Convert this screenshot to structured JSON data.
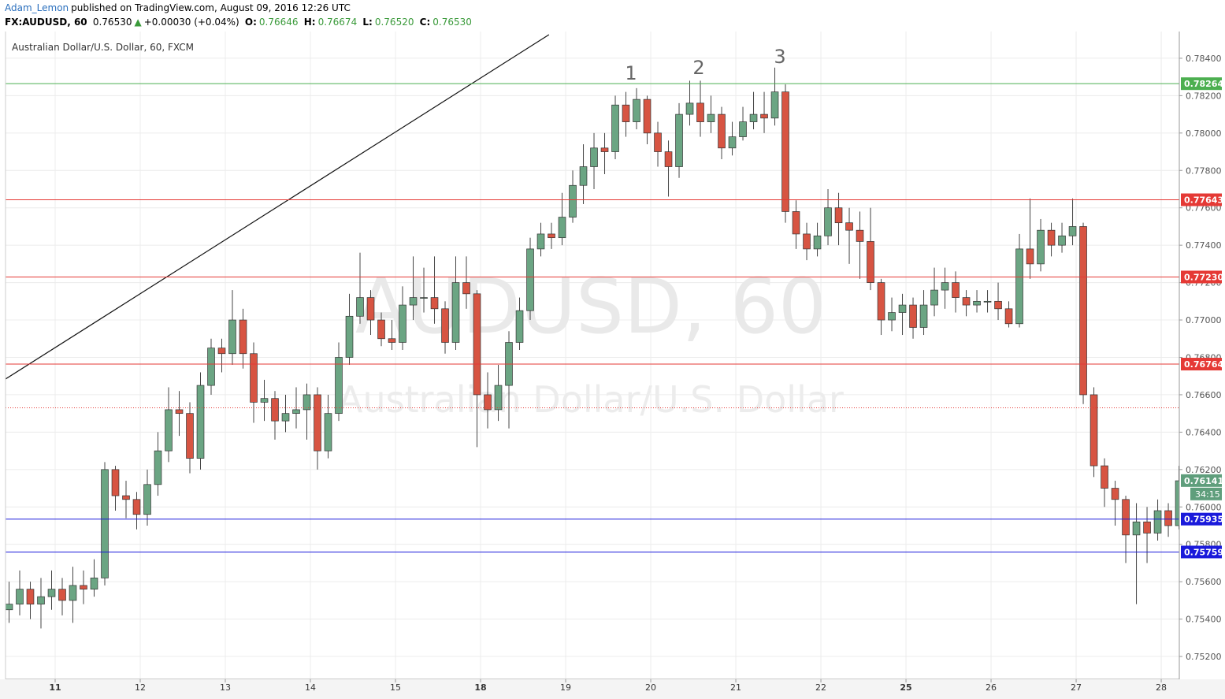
{
  "header": {
    "author": "Adam_Lemon",
    "published": "published on TradingView.com, August 09, 2016 12:26 UTC",
    "symbol": "FX:AUDUSD, 60",
    "last": "0.76530",
    "arrow": "▲",
    "change": "+0.00030 (+0.04%)",
    "o_label": "O:",
    "open": "0.76646",
    "h_label": "H:",
    "high": "0.76674",
    "l_label": "L:",
    "low": "0.76520",
    "c_label": "C:",
    "close": "0.76530"
  },
  "chart_data": {
    "type": "candlestick",
    "legend": "Australian Dollar/U.S. Dollar, 60, FXCM",
    "watermark": "AUDUSD, 60",
    "watermark_sub": "Australian Dollar/U.S. Dollar",
    "up_color": "#6ba583",
    "down_color": "#d75442",
    "xlim": [
      -14,
      317.1
    ],
    "ylim": [
      0.75078,
      0.78543
    ],
    "xticks": [
      {
        "value": 0,
        "label": "11"
      },
      {
        "value": 24,
        "label": "12"
      },
      {
        "value": 48,
        "label": "13"
      },
      {
        "value": 72,
        "label": "14"
      },
      {
        "value": 96,
        "label": "15"
      },
      {
        "value": 120,
        "label": "18"
      },
      {
        "value": 144,
        "label": "19"
      },
      {
        "value": 168,
        "label": "20"
      },
      {
        "value": 192,
        "label": "21"
      },
      {
        "value": 216,
        "label": "22"
      },
      {
        "value": 240,
        "label": "25"
      },
      {
        "value": 264,
        "label": "26"
      },
      {
        "value": 288,
        "label": "27"
      },
      {
        "value": 312,
        "label": "28"
      }
    ],
    "yticks": [
      {
        "value": 0.752,
        "label": "0.75200"
      },
      {
        "value": 0.754,
        "label": "0.75400"
      },
      {
        "value": 0.756,
        "label": "0.75600"
      },
      {
        "value": 0.758,
        "label": "0.75800"
      },
      {
        "value": 0.76,
        "label": "0.76000"
      },
      {
        "value": 0.762,
        "label": "0.76200"
      },
      {
        "value": 0.764,
        "label": "0.76400"
      },
      {
        "value": 0.766,
        "label": "0.76600"
      },
      {
        "value": 0.768,
        "label": "0.76800"
      },
      {
        "value": 0.77,
        "label": "0.77000"
      },
      {
        "value": 0.772,
        "label": "0.77200"
      },
      {
        "value": 0.774,
        "label": "0.77400"
      },
      {
        "value": 0.776,
        "label": "0.77600"
      },
      {
        "value": 0.778,
        "label": "0.77800"
      },
      {
        "value": 0.78,
        "label": "0.78000"
      },
      {
        "value": 0.782,
        "label": "0.78200"
      },
      {
        "value": 0.784,
        "label": "0.78400"
      }
    ],
    "grid": true,
    "hlines": [
      {
        "value": 0.78264,
        "color": "#4caf50"
      },
      {
        "value": 0.77643,
        "color": "#e53935"
      },
      {
        "value": 0.7723,
        "label": "0.77230",
        "color": "#e53935"
      },
      {
        "value": 0.76764,
        "color": "#e53935"
      },
      {
        "value": 0.75935,
        "color": "#1a1adb"
      },
      {
        "value": 0.75759,
        "color": "#1a1adb"
      }
    ],
    "current_line": {
      "value": 0.7653,
      "color": "#e53935"
    },
    "current_price": {
      "value": 0.76141,
      "countdown": "34:15",
      "color": "#5f9e7c"
    },
    "trendline": {
      "x": [
        -14,
        139.3
      ],
      "y": [
        0.76684,
        0.78526
      ]
    },
    "annotations": [
      "1",
      "2",
      "3"
    ],
    "x": [
      -13,
      -10,
      -7,
      -4,
      -1,
      2,
      5,
      8,
      11,
      14,
      17,
      20,
      23,
      26,
      29,
      32,
      35,
      38,
      41,
      44,
      47,
      50,
      53,
      56,
      59,
      62,
      65,
      68,
      71,
      74,
      77,
      80,
      83,
      86,
      89,
      92,
      95,
      98,
      101,
      104,
      107,
      110,
      113,
      116,
      119,
      122,
      125,
      128,
      131,
      134,
      137,
      140,
      143,
      146,
      149,
      152,
      155,
      158,
      161,
      164,
      167,
      170,
      173,
      176,
      179,
      182,
      185,
      188,
      191,
      194,
      197,
      200,
      203,
      206,
      209,
      212,
      215,
      218,
      221,
      224,
      227,
      230,
      233,
      236,
      239,
      242,
      245,
      248,
      251,
      254,
      257,
      260,
      263,
      266,
      269,
      272,
      275,
      278,
      281,
      284,
      287,
      290,
      293,
      296,
      299,
      302,
      305,
      308,
      311,
      314,
      317
    ],
    "open": [
      0.7545,
      0.7548,
      0.7556,
      0.7548,
      0.7552,
      0.7556,
      0.755,
      0.7558,
      0.7556,
      0.7562,
      0.762,
      0.7606,
      0.7604,
      0.7596,
      0.7612,
      0.763,
      0.7652,
      0.765,
      0.7626,
      0.7665,
      0.7685,
      0.7682,
      0.77,
      0.7682,
      0.7656,
      0.7658,
      0.7646,
      0.765,
      0.7652,
      0.766,
      0.763,
      0.765,
      0.768,
      0.7702,
      0.7712,
      0.77,
      0.769,
      0.7688,
      0.7708,
      0.7712,
      0.7712,
      0.7706,
      0.7688,
      0.772,
      0.7714,
      0.766,
      0.7652,
      0.7665,
      0.7688,
      0.7705,
      0.7738,
      0.7746,
      0.7744,
      0.7755,
      0.7772,
      0.7782,
      0.7792,
      0.779,
      0.7815,
      0.7806,
      0.7818,
      0.78,
      0.779,
      0.7782,
      0.781,
      0.7816,
      0.7806,
      0.781,
      0.7792,
      0.7798,
      0.7806,
      0.781,
      0.7808,
      0.7822,
      0.7758,
      0.7746,
      0.7738,
      0.7745,
      0.776,
      0.7752,
      0.7748,
      0.7742,
      0.772,
      0.77,
      0.7704,
      0.7708,
      0.7696,
      0.7708,
      0.7716,
      0.772,
      0.7712,
      0.7708,
      0.771,
      0.771,
      0.7706,
      0.7698,
      0.7738,
      0.773,
      0.7748,
      0.774,
      0.7745,
      0.775,
      0.766,
      0.7622,
      0.761,
      0.7604,
      0.7585,
      0.7592,
      0.7586,
      0.7598,
      0.759
    ],
    "high": [
      0.756,
      0.7566,
      0.756,
      0.7562,
      0.7566,
      0.7562,
      0.7568,
      0.7566,
      0.7572,
      0.7624,
      0.7622,
      0.7614,
      0.7608,
      0.762,
      0.764,
      0.7664,
      0.7662,
      0.7656,
      0.7672,
      0.769,
      0.769,
      0.7716,
      0.7706,
      0.7688,
      0.7668,
      0.7662,
      0.766,
      0.7664,
      0.7666,
      0.7664,
      0.766,
      0.7688,
      0.7714,
      0.7736,
      0.7716,
      0.7704,
      0.77,
      0.7718,
      0.7734,
      0.7728,
      0.7734,
      0.771,
      0.7734,
      0.7734,
      0.7716,
      0.7672,
      0.7676,
      0.7694,
      0.7712,
      0.7744,
      0.7752,
      0.7752,
      0.7768,
      0.778,
      0.7794,
      0.78,
      0.78,
      0.782,
      0.7822,
      0.7824,
      0.782,
      0.7806,
      0.7796,
      0.7816,
      0.7828,
      0.7828,
      0.782,
      0.7814,
      0.7806,
      0.7814,
      0.7822,
      0.7822,
      0.7835,
      0.7826,
      0.7764,
      0.7752,
      0.7752,
      0.777,
      0.7768,
      0.776,
      0.7758,
      0.776,
      0.7722,
      0.7712,
      0.7714,
      0.7712,
      0.7716,
      0.7728,
      0.7728,
      0.7726,
      0.7716,
      0.7716,
      0.7716,
      0.772,
      0.771,
      0.7746,
      0.7765,
      0.7754,
      0.7752,
      0.7752,
      0.7765,
      0.7752,
      0.7664,
      0.7626,
      0.7614,
      0.7606,
      0.7602,
      0.76,
      0.7604,
      0.7602,
      0.7622
    ],
    "low": [
      0.7538,
      0.7542,
      0.754,
      0.7535,
      0.7545,
      0.7542,
      0.7538,
      0.7548,
      0.7552,
      0.7558,
      0.7598,
      0.7594,
      0.7588,
      0.759,
      0.7606,
      0.7624,
      0.7638,
      0.7618,
      0.762,
      0.766,
      0.7672,
      0.7676,
      0.7674,
      0.7645,
      0.7646,
      0.7636,
      0.764,
      0.7642,
      0.7636,
      0.762,
      0.7626,
      0.7646,
      0.7676,
      0.7698,
      0.7692,
      0.7686,
      0.7684,
      0.7684,
      0.77,
      0.7704,
      0.7698,
      0.7682,
      0.7684,
      0.7706,
      0.7632,
      0.7642,
      0.7646,
      0.7642,
      0.7684,
      0.77,
      0.7734,
      0.7738,
      0.774,
      0.7752,
      0.7762,
      0.777,
      0.7778,
      0.7786,
      0.7798,
      0.7802,
      0.7794,
      0.7782,
      0.7766,
      0.7776,
      0.7804,
      0.7798,
      0.78,
      0.7786,
      0.7788,
      0.7796,
      0.7802,
      0.78,
      0.7804,
      0.7752,
      0.7738,
      0.7732,
      0.7734,
      0.774,
      0.774,
      0.773,
      0.7722,
      0.7716,
      0.7692,
      0.7694,
      0.7692,
      0.769,
      0.7692,
      0.7702,
      0.7706,
      0.7704,
      0.7702,
      0.7704,
      0.7704,
      0.77,
      0.7696,
      0.7696,
      0.7722,
      0.7726,
      0.7734,
      0.7736,
      0.774,
      0.7655,
      0.7616,
      0.76,
      0.759,
      0.757,
      0.7548,
      0.757,
      0.7582,
      0.7584,
      0.7588
    ],
    "close": [
      0.7548,
      0.7556,
      0.7548,
      0.7552,
      0.7556,
      0.755,
      0.7558,
      0.7556,
      0.7562,
      0.762,
      0.7606,
      0.7604,
      0.7596,
      0.7612,
      0.763,
      0.7652,
      0.765,
      0.7626,
      0.7665,
      0.7685,
      0.7682,
      0.77,
      0.7682,
      0.7656,
      0.7658,
      0.7646,
      0.765,
      0.7652,
      0.766,
      0.763,
      0.765,
      0.768,
      0.7702,
      0.7712,
      0.77,
      0.769,
      0.7688,
      0.7708,
      0.7712,
      0.7712,
      0.7706,
      0.7688,
      0.772,
      0.7714,
      0.766,
      0.7652,
      0.7665,
      0.7688,
      0.7705,
      0.7738,
      0.7746,
      0.7744,
      0.7755,
      0.7772,
      0.7782,
      0.7792,
      0.779,
      0.7815,
      0.7806,
      0.7818,
      0.78,
      0.779,
      0.7782,
      0.781,
      0.7816,
      0.7806,
      0.781,
      0.7792,
      0.7798,
      0.7806,
      0.781,
      0.7808,
      0.7822,
      0.7758,
      0.7746,
      0.7738,
      0.7745,
      0.776,
      0.7752,
      0.7748,
      0.7742,
      0.772,
      0.77,
      0.7704,
      0.7708,
      0.7696,
      0.7708,
      0.7716,
      0.772,
      0.7712,
      0.7708,
      0.771,
      0.771,
      0.7706,
      0.7698,
      0.7738,
      0.773,
      0.7748,
      0.774,
      0.7745,
      0.775,
      0.766,
      0.7622,
      0.761,
      0.7604,
      0.7585,
      0.7592,
      0.7586,
      0.7598,
      0.759,
      0.7614
    ]
  }
}
